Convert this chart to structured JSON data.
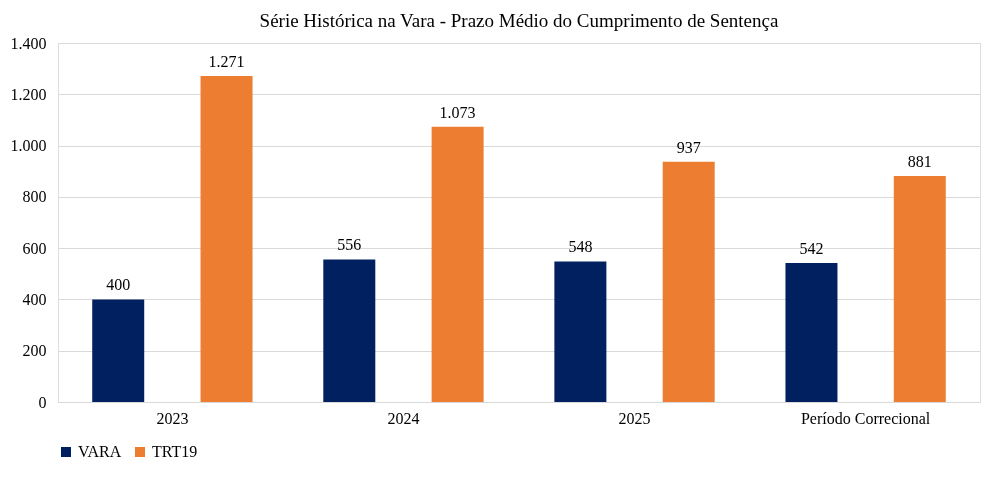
{
  "chart_data": {
    "type": "bar",
    "title": "Série Histórica na Vara - Prazo Médio do Cumprimento de Sentença",
    "categories": [
      "2023",
      "2024",
      "2025",
      "Período Correcional"
    ],
    "series": [
      {
        "name": "VARA",
        "color": "#002060",
        "values": [
          400,
          556,
          548,
          542
        ],
        "value_labels": [
          "400",
          "556",
          "548",
          "542"
        ]
      },
      {
        "name": "TRT19",
        "color": "#ed7d31",
        "values": [
          1271,
          1073,
          937,
          881
        ],
        "value_labels": [
          "1.271",
          "1.073",
          "937",
          "881"
        ]
      }
    ],
    "ylim": [
      0,
      1400
    ],
    "yticks": [
      0,
      200,
      400,
      600,
      800,
      {
        "value": 1000,
        "label": "1.000"
      },
      {
        "value": 1200,
        "label": "1.200"
      },
      {
        "value": 1400,
        "label": "1.400"
      }
    ],
    "grid": "y",
    "legend": "bottom"
  }
}
